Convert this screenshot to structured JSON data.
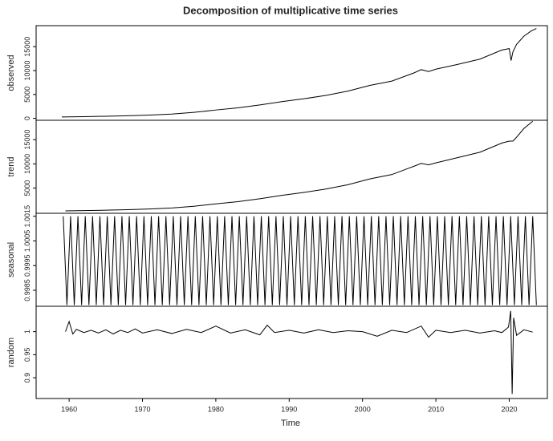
{
  "chart_data": [
    {
      "type": "line",
      "title": "Decomposition of multiplicative time series",
      "ylabel": "observed",
      "xlim": [
        1955.5,
        2025.2
      ],
      "ylim": [
        -400,
        19400
      ],
      "yticks": [
        0,
        5000,
        10000,
        15000
      ],
      "x": [
        1959,
        1962,
        1965,
        1968,
        1971,
        1974,
        1977,
        1980,
        1983,
        1986,
        1989,
        1992,
        1995,
        1998,
        2001,
        2004,
        2007,
        2008,
        2009,
        2010,
        2013,
        2016,
        2019,
        2020,
        2020.25,
        2020.5,
        2021,
        2022,
        2023,
        2023.7
      ],
      "values": [
        300,
        360,
        440,
        540,
        680,
        900,
        1250,
        1750,
        2200,
        2800,
        3500,
        4100,
        4800,
        5700,
        6900,
        7800,
        9500,
        10200,
        9800,
        10300,
        11300,
        12400,
        14300,
        14600,
        12100,
        13900,
        15500,
        17200,
        18300,
        18800
      ]
    },
    {
      "type": "line",
      "ylabel": "trend",
      "xlim": [
        1955.5,
        2025.2
      ],
      "ylim": [
        -200,
        19000
      ],
      "yticks": [
        5000,
        10000,
        15000
      ],
      "x": [
        1959.5,
        1962,
        1965,
        1968,
        1971,
        1974,
        1977,
        1980,
        1983,
        1986,
        1989,
        1992,
        1995,
        1998,
        2001,
        2004,
        2007,
        2008,
        2009,
        2010,
        2013,
        2016,
        2019,
        2020,
        2020.5,
        2021,
        2022,
        2023.2
      ],
      "values": [
        300,
        360,
        440,
        540,
        680,
        900,
        1250,
        1750,
        2200,
        2800,
        3500,
        4100,
        4800,
        5700,
        6900,
        7800,
        9500,
        10100,
        9800,
        10200,
        11300,
        12400,
        14300,
        14700,
        14700,
        15500,
        17300,
        18800
      ]
    },
    {
      "type": "line",
      "ylabel": "seasonal",
      "xlim": [
        1955.5,
        2025.2
      ],
      "ylim": [
        0.99785,
        1.00162
      ],
      "yticks": [
        0.9985,
        0.9995,
        1.0005,
        1.0015
      ],
      "x": [
        1959.2,
        1959.7,
        1960.2,
        1960.7,
        1961.2,
        1961.7,
        1962.2,
        1962.7,
        1963.2,
        1963.7,
        1964.2,
        1964.7,
        1965.2,
        1965.7,
        1966.2,
        1966.7,
        1967.2,
        1967.7,
        1968.2,
        1968.7,
        1969.2,
        1969.7,
        1970.2,
        1970.7,
        1971.2,
        1971.7,
        1972.2,
        1972.7,
        1973.2,
        1973.7,
        1974.2,
        1974.7,
        1975.2,
        1975.7,
        1976.2,
        1976.7,
        1977.2,
        1977.7,
        1978.2,
        1978.7,
        1979.2,
        1979.7,
        1980.2,
        1980.7,
        1981.2,
        1981.7,
        1982.2,
        1982.7,
        1983.2,
        1983.7,
        1984.2,
        1984.7,
        1985.2,
        1985.7,
        1986.2,
        1986.7,
        1987.2,
        1987.7,
        1988.2,
        1988.7,
        1989.2,
        1989.7,
        1990.2,
        1990.7,
        1991.2,
        1991.7,
        1992.2,
        1992.7,
        1993.2,
        1993.7,
        1994.2,
        1994.7,
        1995.2,
        1995.7,
        1996.2,
        1996.7,
        1997.2,
        1997.7,
        1998.2,
        1998.7,
        1999.2,
        1999.7,
        2000.2,
        2000.7,
        2001.2,
        2001.7,
        2002.2,
        2002.7,
        2003.2,
        2003.7,
        2004.2,
        2004.7,
        2005.2,
        2005.7,
        2006.2,
        2006.7,
        2007.2,
        2007.7,
        2008.2,
        2008.7,
        2009.2,
        2009.7,
        2010.2,
        2010.7,
        2011.2,
        2011.7,
        2012.2,
        2012.7,
        2013.2,
        2013.7,
        2014.2,
        2014.7,
        2015.2,
        2015.7,
        2016.2,
        2016.7,
        2017.2,
        2017.7,
        2018.2,
        2018.7,
        2019.2,
        2019.7,
        2020.2,
        2020.7,
        2021.2,
        2021.7,
        2022.2,
        2022.7,
        2023.2,
        2023.7
      ],
      "values": [
        1.0015,
        0.9979,
        1.0015,
        0.9979,
        1.0015,
        0.9979,
        1.0015,
        0.9979,
        1.0015,
        0.9979,
        1.0015,
        0.9979,
        1.0015,
        0.9979,
        1.0015,
        0.9979,
        1.0015,
        0.9979,
        1.0015,
        0.9979,
        1.0015,
        0.9979,
        1.0015,
        0.9979,
        1.0015,
        0.9979,
        1.0015,
        0.9979,
        1.0015,
        0.9979,
        1.0015,
        0.9979,
        1.0015,
        0.9979,
        1.0015,
        0.9979,
        1.0015,
        0.9979,
        1.0015,
        0.9979,
        1.0015,
        0.9979,
        1.0015,
        0.9979,
        1.0015,
        0.9979,
        1.0015,
        0.9979,
        1.0015,
        0.9979,
        1.0015,
        0.9979,
        1.0015,
        0.9979,
        1.0015,
        0.9979,
        1.0015,
        0.9979,
        1.0015,
        0.9979,
        1.0015,
        0.9979,
        1.0015,
        0.9979,
        1.0015,
        0.9979,
        1.0015,
        0.9979,
        1.0015,
        0.9979,
        1.0015,
        0.9979,
        1.0015,
        0.9979,
        1.0015,
        0.9979,
        1.0015,
        0.9979,
        1.0015,
        0.9979,
        1.0015,
        0.9979,
        1.0015,
        0.9979,
        1.0015,
        0.9979,
        1.0015,
        0.9979,
        1.0015,
        0.9979,
        1.0015,
        0.9979,
        1.0015,
        0.9979,
        1.0015,
        0.9979,
        1.0015,
        0.9979,
        1.0015,
        0.9979,
        1.0015,
        0.9979,
        1.0015,
        0.9979,
        1.0015,
        0.9979,
        1.0015,
        0.9979,
        1.0015,
        0.9979,
        1.0015,
        0.9979,
        1.0015,
        0.9979,
        1.0015,
        0.9979,
        1.0015,
        0.9979,
        1.0015,
        0.9979,
        1.0015,
        0.9979,
        1.0015,
        0.9979,
        1.0015,
        0.9979,
        1.0015,
        0.9979,
        1.0015,
        0.9979
      ]
    },
    {
      "type": "line",
      "ylabel": "random",
      "xlabel": "Time",
      "xlim": [
        1955.5,
        2025.2
      ],
      "xticks": [
        1960,
        1970,
        1980,
        1990,
        2000,
        2010,
        2020
      ],
      "ylim": [
        0.855,
        1.055
      ],
      "yticks": [
        0.9,
        0.95,
        1
      ],
      "x": [
        1959.5,
        1960,
        1960.5,
        1961,
        1962,
        1963,
        1964,
        1965,
        1966,
        1967,
        1968,
        1969,
        1970,
        1972,
        1974,
        1976,
        1978,
        1980,
        1982,
        1984,
        1986,
        1987,
        1988,
        1990,
        1992,
        1994,
        1996,
        1998,
        2000,
        2002,
        2004,
        2006,
        2008,
        2009,
        2010,
        2012,
        2014,
        2016,
        2018,
        2019,
        2019.9,
        2020.2,
        2020.4,
        2020.6,
        2021,
        2022,
        2023.2
      ],
      "values": [
        1,
        1.022,
        0.995,
        1.005,
        0.998,
        1.003,
        0.997,
        1.004,
        0.995,
        1.003,
        0.998,
        1.006,
        0.997,
        1.004,
        0.996,
        1.005,
        0.998,
        1.012,
        0.997,
        1.004,
        0.993,
        1.014,
        0.998,
        1.003,
        0.997,
        1.004,
        0.998,
        1.002,
        1,
        0.99,
        1.003,
        0.998,
        1.012,
        0.988,
        1.003,
        0.998,
        1.003,
        0.997,
        1.002,
        0.998,
        1.01,
        1.045,
        0.865,
        1.03,
        0.992,
        1.004,
        0.999
      ]
    }
  ]
}
